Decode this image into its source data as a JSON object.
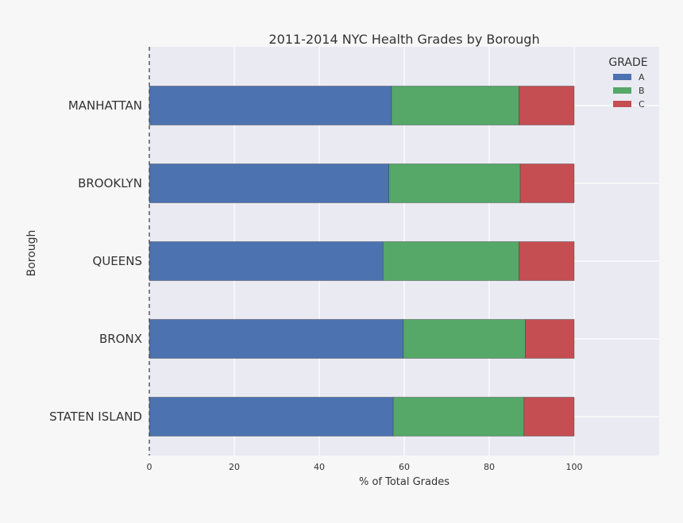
{
  "chart_data": {
    "type": "bar",
    "orientation": "horizontal",
    "stacked": true,
    "title": "2011-2014 NYC Health Grades by Borough",
    "xlabel": "% of Total Grades",
    "ylabel": "Borough",
    "xlim": [
      0,
      120
    ],
    "xticks": [
      0,
      20,
      40,
      60,
      80,
      100
    ],
    "grid": true,
    "legend": {
      "title": "GRADE",
      "position": "top-right"
    },
    "categories": [
      "MANHATTAN",
      "BROOKLYN",
      "QUEENS",
      "BRONX",
      "STATEN ISLAND"
    ],
    "series": [
      {
        "name": "A",
        "color": "#4c72b0",
        "values": [
          57.0,
          56.4,
          55.0,
          59.8,
          57.4
        ]
      },
      {
        "name": "B",
        "color": "#55a868",
        "values": [
          30.0,
          30.9,
          32.0,
          28.7,
          30.8
        ]
      },
      {
        "name": "C",
        "color": "#c44e52",
        "values": [
          13.0,
          12.7,
          13.0,
          11.5,
          11.8
        ]
      }
    ],
    "colors": {
      "plot_background": "#eaeaf2",
      "grid": "#ffffff",
      "page_background": "#f7f7f7",
      "text": "#333333"
    }
  }
}
